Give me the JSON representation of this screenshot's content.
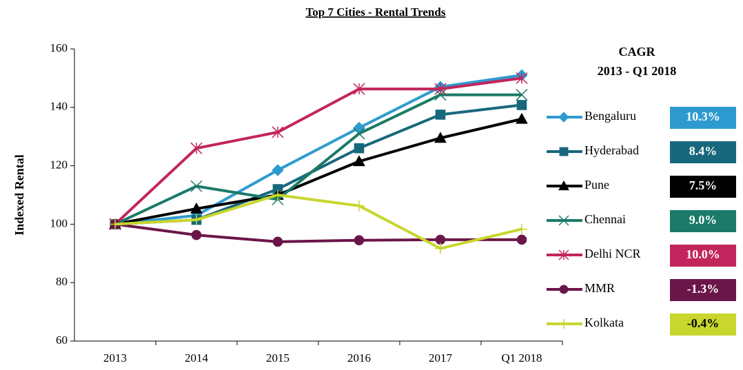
{
  "chart_data": {
    "type": "line",
    "title": "Top 7 Cities - Rental Trends",
    "y_label": "Indexed Rental",
    "categories": [
      "2013",
      "2014",
      "2015",
      "2016",
      "2017",
      "Q1 2018"
    ],
    "ylim": [
      60,
      160
    ],
    "yticks": [
      60,
      80,
      100,
      120,
      140,
      160
    ],
    "cagr_title": [
      "CAGR",
      "2013 - Q1 2018"
    ],
    "series": [
      {
        "name": "Bengaluru",
        "color": "#2e9bd0",
        "marker": "diamond",
        "values": [
          100,
          103,
          118.5,
          133,
          147,
          151
        ],
        "cagr": "10.3%"
      },
      {
        "name": "Hyderabad",
        "color": "#17687d",
        "marker": "square",
        "values": [
          100,
          101.5,
          112,
          126,
          137.5,
          140.8
        ],
        "cagr": "8.4%"
      },
      {
        "name": "Pune",
        "color": "#000000",
        "marker": "triangle",
        "values": [
          100,
          105.3,
          110,
          121.5,
          129.5,
          136
        ],
        "cagr": "7.5%"
      },
      {
        "name": "Chennai",
        "color": "#1b7a68",
        "marker": "x",
        "values": [
          100,
          113,
          108.5,
          131,
          144.3,
          144.3
        ],
        "cagr": "9.0%"
      },
      {
        "name": "Delhi NCR",
        "color": "#c2255c",
        "marker": "star",
        "values": [
          100,
          126,
          131.5,
          146.3,
          146.3,
          150
        ],
        "cagr": "10.0%"
      },
      {
        "name": "MMR",
        "color": "#6b1648",
        "marker": "circle",
        "values": [
          100,
          96.3,
          94,
          94.5,
          94.7,
          94.7
        ],
        "cagr": "-1.3%"
      },
      {
        "name": "Kolkata",
        "color": "#c8d62e",
        "marker": "plus",
        "values": [
          100,
          101.5,
          110,
          106.3,
          91.7,
          98.3
        ],
        "cagr": "-0.4%"
      }
    ]
  }
}
